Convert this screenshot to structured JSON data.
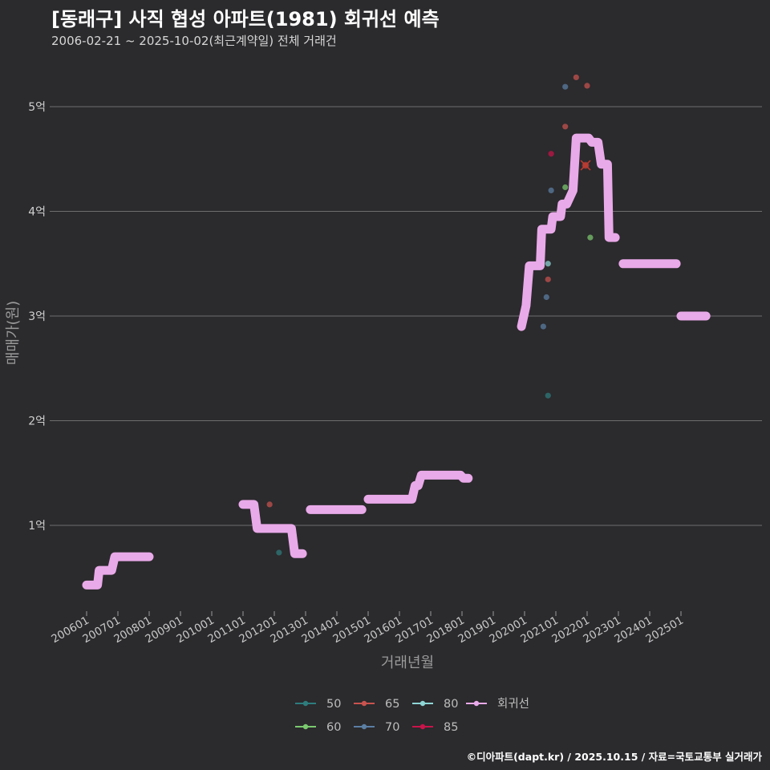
{
  "title": "[동래구] 사직 협성 아파트(1981) 회귀선 예측",
  "subtitle": "2006-02-21 ~ 2025-10-02(최근계약일) 전체 거래건",
  "credit": "©디아파트(dapt.kr) / 2025.10.15 / 자료=국토교통부 실거래가",
  "colors": {
    "background": "#2b2a2d",
    "grid": "#6e6e6e",
    "regression": "#e9aae9",
    "s50": "#2e7d7d",
    "s60": "#7bc96f",
    "s65": "#c9534f",
    "s70": "#5b7fa3",
    "s80": "#8fd6d6",
    "s85": "#c8144a"
  },
  "chart_data": {
    "type": "scatter",
    "title": "[동래구] 사직 협성 아파트(1981) 회귀선 예측",
    "xlabel": "거래년월",
    "ylabel": "매매가(원)",
    "y_unit": "억",
    "ylim": [
      0.2,
      5.65
    ],
    "xlim": [
      2005.5,
      2026.0
    ],
    "y_ticks": [
      1,
      2,
      3,
      4,
      5
    ],
    "y_tick_labels": [
      "1억",
      "2억",
      "3억",
      "4억",
      "5억"
    ],
    "x_ticks": [
      2006,
      2007,
      2008,
      2009,
      2010,
      2011,
      2012,
      2013,
      2014,
      2015,
      2016,
      2017,
      2018,
      2019,
      2020,
      2021,
      2022,
      2023,
      2024,
      2025
    ],
    "x_tick_labels": [
      "200601",
      "200701",
      "200801",
      "200901",
      "201001",
      "201101",
      "201201",
      "201301",
      "201401",
      "201501",
      "201601",
      "201701",
      "201801",
      "201901",
      "202001",
      "202101",
      "202201",
      "202301",
      "202401",
      "202501"
    ],
    "grid": true,
    "legend_position": "bottom",
    "legend": [
      {
        "key": "s50",
        "label": "50"
      },
      {
        "key": "s65",
        "label": "65"
      },
      {
        "key": "s80",
        "label": "80"
      },
      {
        "key": "reg",
        "label": "회귀선"
      },
      {
        "key": "s60",
        "label": "60"
      },
      {
        "key": "s70",
        "label": "70"
      },
      {
        "key": "s85",
        "label": "85"
      }
    ],
    "series": [
      {
        "name": "50",
        "key": "s50",
        "points": [
          [
            2012.15,
            0.74
          ],
          [
            2020.75,
            2.24
          ]
        ]
      },
      {
        "name": "60",
        "key": "s60",
        "points": [
          [
            2021.3,
            4.23
          ],
          [
            2022.1,
            3.75
          ]
        ]
      },
      {
        "name": "65",
        "key": "s65",
        "points": [
          [
            2011.85,
            1.2
          ],
          [
            2020.75,
            3.35
          ],
          [
            2021.3,
            4.81
          ],
          [
            2021.65,
            5.28
          ],
          [
            2022.0,
            5.2
          ],
          [
            2021.95,
            4.44
          ]
        ]
      },
      {
        "name": "70",
        "key": "s70",
        "points": [
          [
            2020.6,
            2.9
          ],
          [
            2020.7,
            3.18
          ],
          [
            2020.85,
            4.2
          ],
          [
            2021.3,
            5.19
          ]
        ]
      },
      {
        "name": "80",
        "key": "s80",
        "points": [
          [
            2020.75,
            3.5
          ]
        ]
      },
      {
        "name": "85",
        "key": "s85",
        "points": [
          [
            2020.85,
            4.55
          ]
        ]
      }
    ],
    "regression_segments": [
      [
        [
          2006.0,
          0.43
        ],
        [
          2006.35,
          0.43
        ],
        [
          2006.4,
          0.57
        ],
        [
          2006.8,
          0.57
        ],
        [
          2006.9,
          0.7
        ],
        [
          2008.0,
          0.7
        ]
      ],
      [
        [
          2011.0,
          1.2
        ],
        [
          2011.35,
          1.2
        ],
        [
          2011.45,
          0.97
        ],
        [
          2012.55,
          0.97
        ],
        [
          2012.65,
          0.73
        ],
        [
          2012.9,
          0.73
        ]
      ],
      [
        [
          2013.15,
          1.15
        ],
        [
          2014.8,
          1.15
        ]
      ],
      [
        [
          2015.0,
          1.25
        ],
        [
          2016.4,
          1.25
        ],
        [
          2016.5,
          1.38
        ],
        [
          2016.6,
          1.38
        ],
        [
          2016.7,
          1.48
        ],
        [
          2017.95,
          1.48
        ],
        [
          2018.05,
          1.45
        ],
        [
          2018.2,
          1.45
        ]
      ],
      [
        [
          2019.9,
          2.9
        ],
        [
          2020.05,
          3.1
        ],
        [
          2020.15,
          3.48
        ],
        [
          2020.5,
          3.48
        ],
        [
          2020.55,
          3.83
        ],
        [
          2020.85,
          3.83
        ],
        [
          2020.9,
          3.95
        ],
        [
          2021.15,
          3.95
        ],
        [
          2021.2,
          4.07
        ],
        [
          2021.35,
          4.07
        ],
        [
          2021.55,
          4.2
        ],
        [
          2021.65,
          4.7
        ],
        [
          2022.05,
          4.7
        ],
        [
          2022.15,
          4.66
        ],
        [
          2022.35,
          4.66
        ],
        [
          2022.45,
          4.45
        ],
        [
          2022.65,
          4.45
        ],
        [
          2022.7,
          3.75
        ],
        [
          2022.9,
          3.75
        ]
      ],
      [
        [
          2023.15,
          3.5
        ],
        [
          2024.85,
          3.5
        ]
      ],
      [
        [
          2025.0,
          3.0
        ],
        [
          2025.8,
          3.0
        ]
      ]
    ]
  }
}
